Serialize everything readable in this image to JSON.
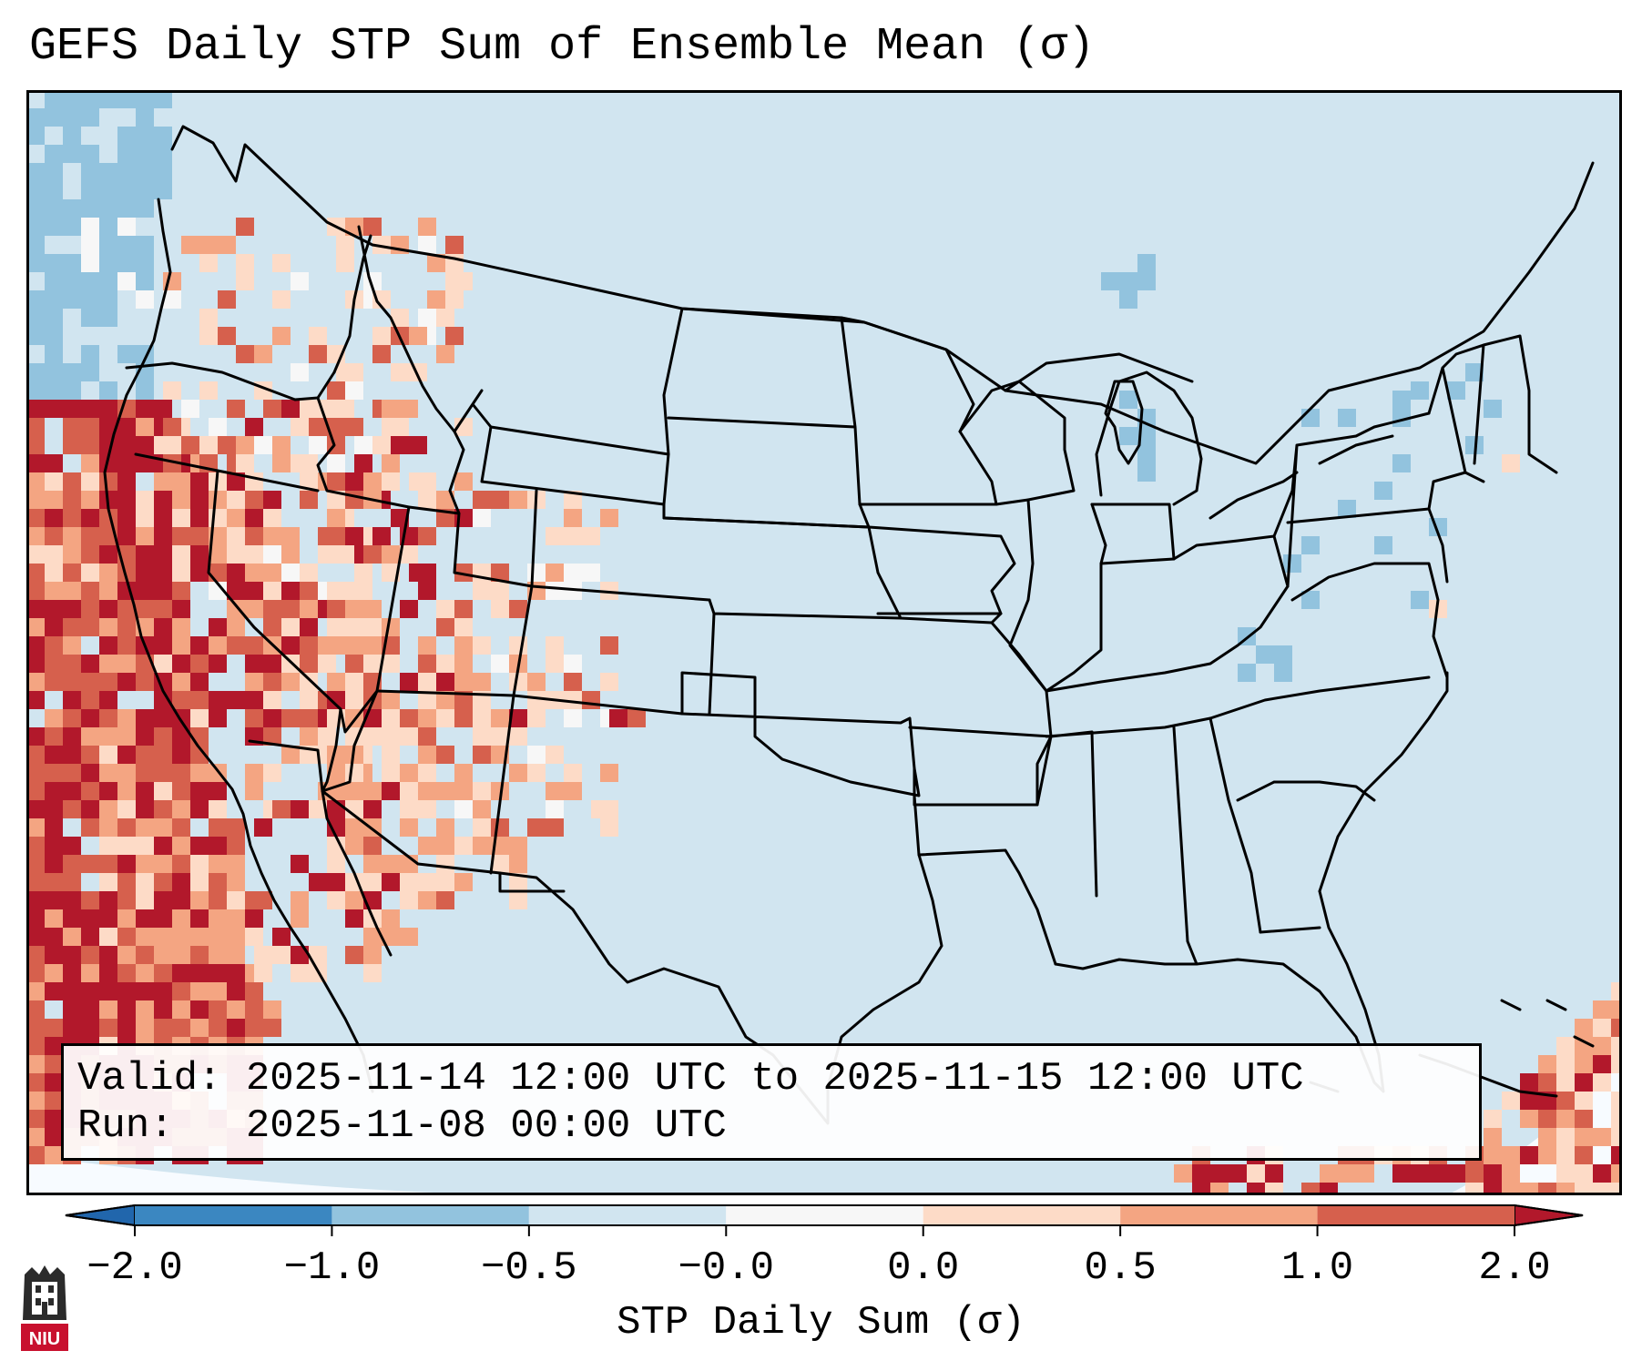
{
  "title": "GEFS Daily STP Sum of Ensemble Mean (σ)",
  "info_box": {
    "valid_label": "Valid:",
    "valid_value": "2025-11-14 12:00 UTC to 2025-11-15 12:00 UTC",
    "run_label": "Run:",
    "run_value": "2025-11-08 00:00 UTC"
  },
  "colorbar": {
    "label": "STP Daily Sum (σ)",
    "ticks": [
      "−2.0",
      "−1.0",
      "−0.5",
      "−0.0",
      "0.0",
      "0.5",
      "1.0",
      "2.0"
    ],
    "colors": [
      "#3b87c1",
      "#92c3de",
      "#d1e5f0",
      "#f7f7f7",
      "#fddbc7",
      "#f4a582",
      "#d6604d",
      "#b2182b"
    ],
    "under_color": "#2166ac",
    "over_color": "#b2182b"
  },
  "map": {
    "projection": "Lambert conformal, CONUS",
    "background_color": "#d1e5f0",
    "outside_domain_color": "#f7fbff"
  },
  "logo": {
    "text": "NIU",
    "color": "#c8102e"
  }
}
